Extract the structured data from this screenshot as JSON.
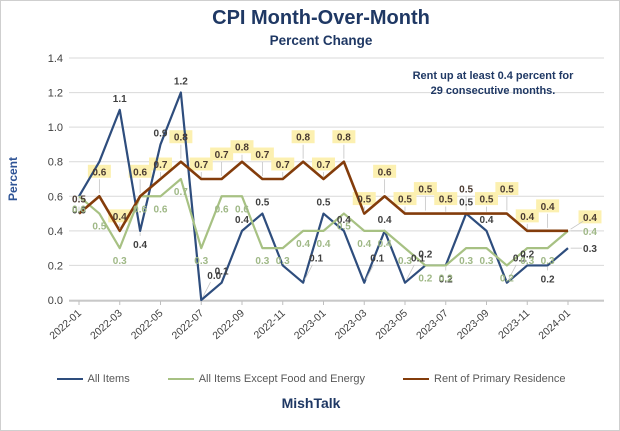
{
  "title": "CPI Month-Over-Month",
  "subtitle": "Percent Change",
  "annotation": "Rent up at least 0.4 percent for 29 consecutive months.",
  "footer": "MishTalk",
  "colors": {
    "title_blue": "#1f3864",
    "all_items": "#2e4d7d",
    "core": "#a7c183",
    "rent": "#833c0b",
    "axis_text": "#404040",
    "gridline": "#d9d9d9",
    "leader": "#c4c4c4",
    "highlight_yellow": "#fcf0b0",
    "legend_text": "#595959",
    "label_dark": "#3f3f3f",
    "label_green": "#9fb886",
    "label_rent": "#4a3b32"
  },
  "chart_data": {
    "type": "line",
    "title": "CPI Month-Over-Month",
    "subtitle": "Percent Change",
    "xlabel": "",
    "ylabel": "Percent",
    "ylim": [
      0,
      1.4
    ],
    "y_ticks": [
      "0.0",
      "0.2",
      "0.4",
      "0.6",
      "0.8",
      "1.0",
      "1.2",
      "1.4"
    ],
    "grid": true,
    "legend_position": "bottom",
    "x": [
      "2022-01",
      "2022-02",
      "2022-03",
      "2022-04",
      "2022-05",
      "2022-06",
      "2022-07",
      "2022-08",
      "2022-09",
      "2022-10",
      "2022-11",
      "2022-12",
      "2023-01",
      "2023-02",
      "2023-03",
      "2023-04",
      "2023-05",
      "2023-06",
      "2023-07",
      "2023-08",
      "2023-09",
      "2023-10",
      "2023-11",
      "2023-12",
      "2024-01"
    ],
    "x_tick_labels": [
      "2022-01",
      "2022-03",
      "2022-05",
      "2022-07",
      "2022-09",
      "2022-11",
      "2023-01",
      "2023-03",
      "2023-05",
      "2023-07",
      "2023-09",
      "2023-11",
      "2024-01"
    ],
    "series": [
      {
        "name": "All Items",
        "color": "#2e4d7d",
        "values": [
          0.6,
          0.8,
          1.1,
          0.4,
          0.9,
          1.2,
          0.0,
          0.1,
          0.4,
          0.5,
          0.2,
          0.1,
          0.5,
          0.4,
          0.1,
          0.4,
          0.1,
          0.2,
          0.2,
          0.5,
          0.4,
          0.1,
          0.2,
          0.2,
          0.3
        ],
        "labels": [
          "0.6",
          "",
          "1.1",
          "0.4",
          "0.9",
          "1.2",
          "0.0",
          "0.1",
          "0.4",
          "0.5",
          "",
          "0.1",
          "0.5",
          "0.4",
          "0.1",
          "0.4",
          "0.1",
          "0.2",
          "0.2",
          "0.5",
          "0.4",
          "0.1",
          "0.2",
          "0.2",
          "0.3"
        ],
        "highlight": false
      },
      {
        "name": "All Items Except Food and Energy",
        "color": "#a7c183",
        "values": [
          0.6,
          0.5,
          0.3,
          0.6,
          0.6,
          0.7,
          0.3,
          0.6,
          0.6,
          0.3,
          0.3,
          0.4,
          0.4,
          0.5,
          0.4,
          0.4,
          0.3,
          0.2,
          0.2,
          0.3,
          0.3,
          0.2,
          0.3,
          0.3,
          0.4
        ],
        "labels": [
          "0.6",
          "0.5",
          "0.3",
          "0.6",
          "0.6",
          "0.7",
          "0.3",
          "0.6",
          "0.6",
          "0.3",
          "0.3",
          "0.4",
          "0.4",
          "0.5",
          "0.4",
          "0.4",
          "0.3",
          "0.2",
          "0.2",
          "0.3",
          "0.3",
          "0.2",
          "0.3",
          "0.3",
          "0.4"
        ],
        "highlight": false
      },
      {
        "name": "Rent of Primary Residence",
        "color": "#833c0b",
        "values": [
          0.5,
          0.6,
          0.4,
          0.6,
          0.7,
          0.8,
          0.7,
          0.7,
          0.8,
          0.7,
          0.7,
          0.8,
          0.7,
          0.8,
          0.5,
          0.6,
          0.5,
          0.5,
          0.5,
          0.5,
          0.5,
          0.5,
          0.4,
          0.4,
          0.4
        ],
        "labels": [
          "0.5",
          "0.6",
          "0.4",
          "0.6",
          "0.7",
          "0.8",
          "0.7",
          "0.7",
          "0.8",
          "0.7",
          "0.7",
          "0.8",
          "0.7",
          "0.8",
          "0.5",
          "0.6",
          "0.5",
          "0.5",
          "0.5",
          "0.5",
          "0.5",
          "0.5",
          "0.4",
          "0.4",
          "0.4"
        ],
        "highlight": true,
        "highlight_skip": [
          0,
          19
        ]
      }
    ]
  }
}
